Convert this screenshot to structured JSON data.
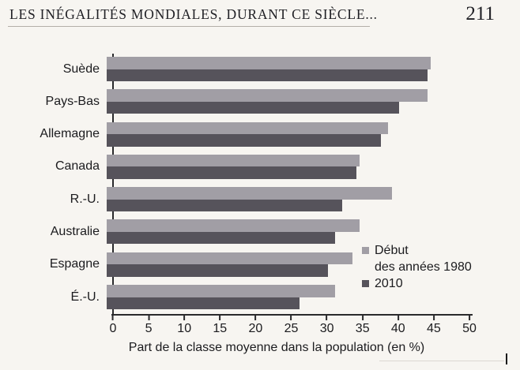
{
  "page": {
    "header": {
      "title": "LES INÉGALITÉS MONDIALES, DURANT CE SIÈCLE...",
      "page_number": "211"
    }
  },
  "legend": {
    "item_1980_line1": "Début",
    "item_1980_line2": "des années 1980",
    "item_2010": "2010"
  },
  "colors": {
    "series_1980": "#a19ea5",
    "series_2010": "#56535b",
    "axis": "#2a2a2c",
    "paper": "#f7f5f1",
    "text": "#1b1b1e"
  },
  "chart_data": {
    "type": "bar",
    "orientation": "horizontal",
    "title": "",
    "xlabel": "Part de la classe moyenne dans la population (en %)",
    "ylabel": "",
    "xlim": [
      0,
      50
    ],
    "x_ticks": [
      0,
      5,
      10,
      15,
      20,
      25,
      30,
      35,
      40,
      45,
      50
    ],
    "grid": false,
    "legend_position": "right-middle",
    "categories": [
      "Suède",
      "Pays-Bas",
      "Allemagne",
      "Canada",
      "R.-U.",
      "Australie",
      "Espagne",
      "É.-U."
    ],
    "series": [
      {
        "name": "Début des années 1980",
        "color": "#a19ea5",
        "values": [
          45.5,
          45,
          39.5,
          35.5,
          40,
          35.5,
          34.5,
          32
        ]
      },
      {
        "name": "2010",
        "color": "#56535b",
        "values": [
          45,
          41,
          38.5,
          35,
          33,
          32,
          31,
          27
        ]
      }
    ]
  }
}
